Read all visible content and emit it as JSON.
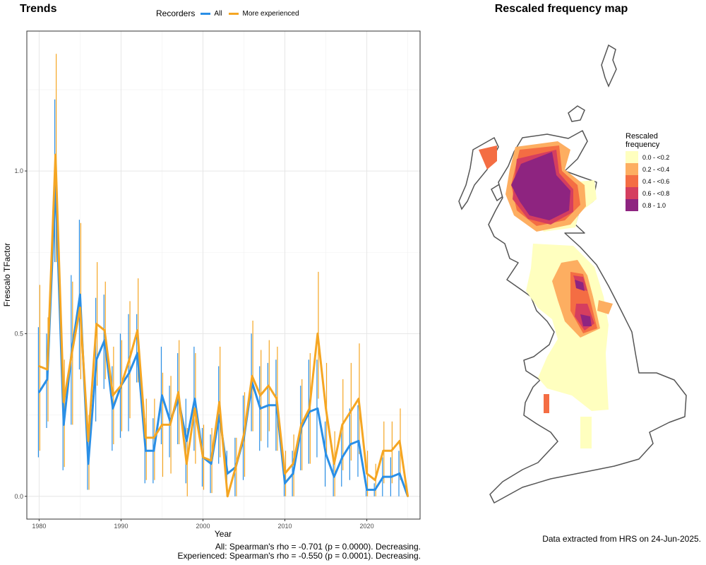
{
  "trends": {
    "title": "Trends",
    "legend_title": "Recorders",
    "stats_all": "All: Spearman's rho = -0.701 (p = 0.0000). Decreasing.",
    "stats_exp": "Experienced: Spearman's rho = -0.550 (p = 0.0001). Decreasing."
  },
  "map": {
    "title": "Rescaled frequency map",
    "legend_title_1": "Rescaled",
    "legend_title_2": "frequency",
    "legend": [
      {
        "label": "0.0 - <0.2",
        "color": "#FFFFBF"
      },
      {
        "label": "0.2 - <0.4",
        "color": "#FDAE61"
      },
      {
        "label": "0.4 - <0.6",
        "color": "#F46D43"
      },
      {
        "label": "0.6 - <0.8",
        "color": "#D53E5F"
      },
      {
        "label": "0.8 - 1.0",
        "color": "#8E2480"
      }
    ],
    "land_color": "#FFFFFF",
    "outline_color": "#555555"
  },
  "footer": "Data extracted from HRS on 24-Jun-2025.",
  "chart_data": {
    "type": "line",
    "title": "Trends",
    "xlabel": "Year",
    "ylabel": "Frescalo TFactor",
    "xlim": [
      1978.5,
      2026.5
    ],
    "ylim": [
      -0.07,
      1.43
    ],
    "xticks": [
      1980,
      1990,
      2000,
      2010,
      2020
    ],
    "yticks": [
      0.0,
      0.5,
      1.0
    ],
    "ytick_labels": [
      "0.0",
      "0.5",
      "1.0"
    ],
    "grid": true,
    "legend_title": "Recorders",
    "legend_position": "top",
    "x": [
      1980,
      1981,
      1982,
      1983,
      1984,
      1985,
      1986,
      1987,
      1988,
      1989,
      1990,
      1991,
      1992,
      1993,
      1994,
      1995,
      1996,
      1997,
      1998,
      1999,
      2000,
      2001,
      2002,
      2003,
      2004,
      2005,
      2006,
      2007,
      2008,
      2009,
      2010,
      2011,
      2012,
      2013,
      2014,
      2015,
      2016,
      2017,
      2018,
      2019,
      2020,
      2021,
      2022,
      2023,
      2024,
      2025
    ],
    "series": [
      {
        "name": "All",
        "color": "#2A8FE6",
        "values": [
          0.32,
          0.36,
          0.96,
          0.22,
          0.45,
          0.62,
          0.1,
          0.42,
          0.48,
          0.27,
          0.34,
          0.38,
          0.44,
          0.14,
          0.14,
          0.31,
          0.23,
          0.3,
          0.17,
          0.3,
          0.12,
          0.1,
          0.25,
          0.07,
          0.09,
          0.18,
          0.35,
          0.27,
          0.28,
          0.28,
          0.04,
          0.07,
          0.21,
          0.26,
          0.27,
          0.13,
          0.06,
          0.12,
          0.16,
          0.17,
          0.02,
          0.02,
          0.06,
          0.06,
          0.07,
          0.0
        ],
        "lower": [
          0.12,
          0.21,
          0.72,
          0.08,
          0.22,
          0.39,
          0.02,
          0.23,
          0.33,
          0.14,
          0.18,
          0.2,
          0.35,
          0.04,
          0.04,
          0.16,
          0.12,
          0.16,
          0.04,
          0.14,
          0.03,
          0.01,
          0.1,
          0.0,
          0.0,
          0.05,
          0.2,
          0.14,
          0.15,
          0.14,
          0.0,
          0.0,
          0.08,
          0.1,
          0.12,
          0.03,
          0.0,
          0.03,
          0.05,
          0.06,
          0.0,
          0.0,
          0.0,
          0.0,
          0.0,
          0.0
        ],
        "upper": [
          0.52,
          0.5,
          1.22,
          0.36,
          0.68,
          0.85,
          0.18,
          0.61,
          0.62,
          0.4,
          0.5,
          0.56,
          0.56,
          0.24,
          0.24,
          0.46,
          0.34,
          0.44,
          0.3,
          0.46,
          0.21,
          0.19,
          0.4,
          0.14,
          0.18,
          0.31,
          0.5,
          0.4,
          0.41,
          0.42,
          0.08,
          0.14,
          0.34,
          0.42,
          0.42,
          0.23,
          0.12,
          0.21,
          0.27,
          0.28,
          0.04,
          0.04,
          0.12,
          0.12,
          0.14,
          0.0
        ]
      },
      {
        "name": "More experienced",
        "color": "#F5A623",
        "values": [
          0.4,
          0.39,
          1.05,
          0.29,
          0.44,
          0.58,
          0.17,
          0.53,
          0.51,
          0.31,
          0.34,
          0.42,
          0.51,
          0.18,
          0.18,
          0.22,
          0.22,
          0.32,
          0.1,
          0.27,
          0.12,
          0.11,
          0.29,
          0.0,
          0.09,
          0.19,
          0.37,
          0.31,
          0.34,
          0.3,
          0.07,
          0.1,
          0.22,
          0.27,
          0.5,
          0.27,
          0.1,
          0.22,
          0.26,
          0.3,
          0.07,
          0.05,
          0.14,
          0.14,
          0.17,
          0.0
        ],
        "lower": [
          0.14,
          0.23,
          0.72,
          0.09,
          0.22,
          0.36,
          0.02,
          0.34,
          0.36,
          0.16,
          0.2,
          0.24,
          0.35,
          0.05,
          0.05,
          0.06,
          0.07,
          0.16,
          0.0,
          0.1,
          0.02,
          0.01,
          0.12,
          0.0,
          0.0,
          0.06,
          0.2,
          0.17,
          0.2,
          0.14,
          0.0,
          0.0,
          0.08,
          0.1,
          0.3,
          0.13,
          0.0,
          0.08,
          0.11,
          0.13,
          0.0,
          0.0,
          0.04,
          0.04,
          0.05,
          0.0
        ],
        "upper": [
          0.65,
          0.55,
          1.36,
          0.42,
          0.66,
          0.84,
          0.25,
          0.72,
          0.66,
          0.46,
          0.48,
          0.6,
          0.67,
          0.3,
          0.3,
          0.38,
          0.37,
          0.48,
          0.21,
          0.44,
          0.22,
          0.21,
          0.46,
          0.0,
          0.18,
          0.32,
          0.54,
          0.45,
          0.48,
          0.46,
          0.14,
          0.19,
          0.36,
          0.44,
          0.69,
          0.41,
          0.2,
          0.36,
          0.41,
          0.47,
          0.14,
          0.1,
          0.23,
          0.23,
          0.27,
          0.0
        ]
      }
    ]
  }
}
